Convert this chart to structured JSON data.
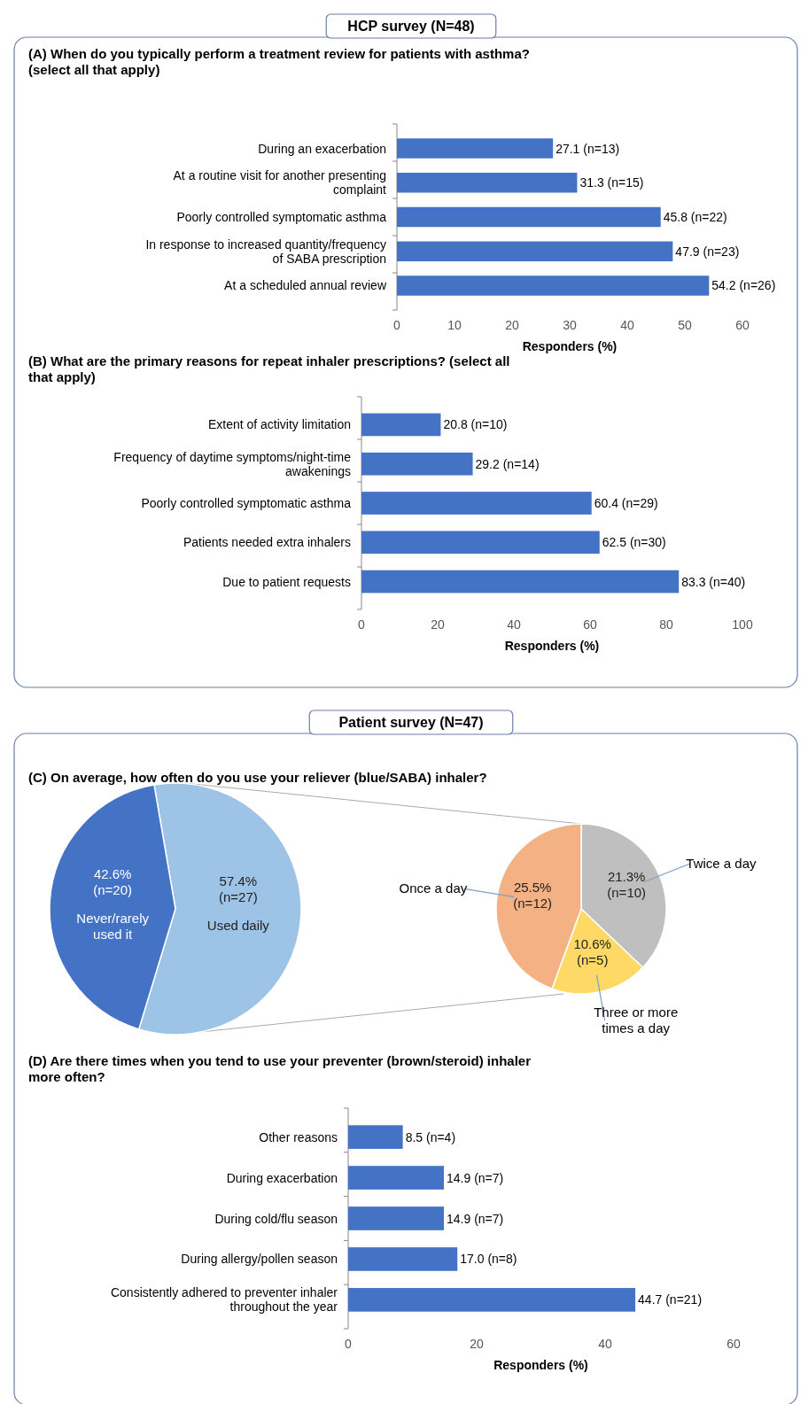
{
  "chart_data": [
    {
      "type": "bar",
      "orientation": "horizontal",
      "title": "(A) When do you typically perform a treatment review for patients with asthma? (select all that apply)",
      "annotations": [
        "HCP survey (N=48)"
      ],
      "categories": [
        "During an exacerbation",
        "At a routine visit for another presenting complaint",
        "Poorly controlled symptomatic asthma",
        "In response to increased quantity/frequency of SABA prescription",
        "At a scheduled annual review"
      ],
      "values": [
        27.1,
        31.3,
        45.8,
        47.9,
        54.2
      ],
      "value_labels": [
        "27.1 (n=13)",
        "31.3 (n=15)",
        "45.8 (n=22)",
        "47.9 (n=23)",
        "54.2 (n=26)"
      ],
      "color": "#4472c4",
      "xlim": [
        0,
        60
      ],
      "xticks": [
        0,
        10,
        20,
        30,
        40,
        50,
        60
      ],
      "xlabel": "Responders  (%)"
    },
    {
      "type": "bar",
      "orientation": "horizontal",
      "title": "(B) What are the primary reasons for repeat inhaler prescriptions? (select all that apply)",
      "categories": [
        "Extent of activity limitation",
        "Frequency of daytime symptoms/night-time awakenings",
        "Poorly controlled symptomatic asthma",
        "Patients needed extra inhalers",
        "Due to patient requests"
      ],
      "values": [
        20.8,
        29.2,
        60.4,
        62.5,
        83.3
      ],
      "value_labels": [
        "20.8 (n=10)",
        "29.2 (n=14)",
        "60.4 (n=29)",
        "62.5 (n=30)",
        "83.3 (n=40)"
      ],
      "color": "#4472c4",
      "xlim": [
        0,
        100
      ],
      "xticks": [
        0,
        20,
        40,
        60,
        80,
        100
      ],
      "xlabel": "Responders  (%)"
    },
    {
      "type": "pie",
      "title": "(C) On average, how often do you use your reliever (blue/SABA) inhaler?",
      "annotations": [
        "Patient survey (N=47)"
      ],
      "categories": [
        "Used daily",
        "Never/rarely used it"
      ],
      "values": [
        57.4,
        42.6
      ],
      "value_labels": [
        "57.4%\n(n=27)",
        "42.6%\n(n=20)"
      ],
      "colors": [
        "#9dc3e6",
        "#4472c4"
      ]
    },
    {
      "type": "pie",
      "categories": [
        "Twice a day",
        "Three or more times a day",
        "Once a day"
      ],
      "values": [
        21.3,
        10.6,
        25.5
      ],
      "value_labels": [
        "21.3%\n(n=10)",
        "10.6%\n(n=5)",
        "25.5%\n(n=12)"
      ],
      "colors": [
        "#bfbfbf",
        "#ffd966",
        "#f4b183"
      ]
    },
    {
      "type": "bar",
      "orientation": "horizontal",
      "title": "(D) Are there times when you tend to use your preventer (brown/steroid) inhaler more often?",
      "categories": [
        "Other reasons",
        "During exacerbation",
        "During cold/flu season",
        "During allergy/pollen season",
        "Consistently adhered to preventer inhaler throughout the year"
      ],
      "values": [
        8.5,
        14.9,
        14.9,
        17.0,
        44.7
      ],
      "value_labels": [
        "8.5 (n=4)",
        "14.9 (n=7)",
        "14.9 (n=7)",
        "17.0 (n=8)",
        "44.7 (n=21)"
      ],
      "color": "#4472c4",
      "xlim": [
        0,
        60
      ],
      "xticks": [
        0,
        20,
        40,
        60
      ],
      "xlabel": "Responders  (%)"
    }
  ]
}
